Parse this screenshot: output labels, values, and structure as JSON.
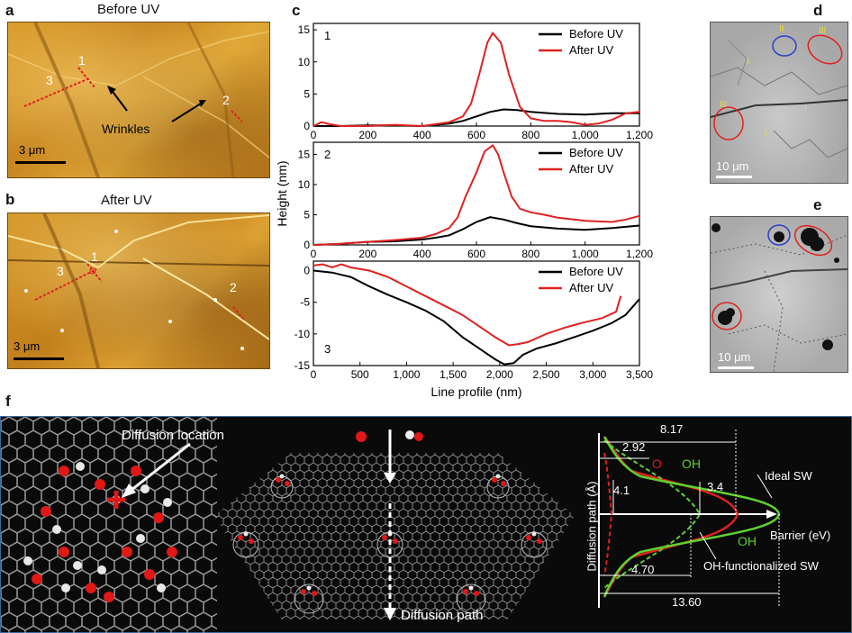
{
  "panels": {
    "a": {
      "label": "a",
      "title": "Before UV",
      "scale": "3 μm",
      "annotation": "Wrinkles",
      "markers": [
        "1",
        "2",
        "3"
      ]
    },
    "b": {
      "label": "b",
      "title": "After UV",
      "scale": "3 μm",
      "markers": [
        "1",
        "2",
        "3"
      ]
    },
    "c": {
      "label": "c"
    },
    "d": {
      "label": "d",
      "scale": "10 μm",
      "roman": [
        "II",
        "III",
        "I",
        "III",
        "I",
        "I",
        "I"
      ]
    },
    "e": {
      "label": "e",
      "scale": "10 μm"
    },
    "f": {
      "label": "f",
      "diffusion_location": "Diffusion location",
      "diffusion_path": "Diffusion path"
    }
  },
  "chart_data": [
    {
      "type": "line",
      "panel_number": "1",
      "xlim": [
        0,
        1200
      ],
      "ylim": [
        0,
        16
      ],
      "xticks": [
        "0",
        "200",
        "400",
        "600",
        "800",
        "1,000",
        "1,200"
      ],
      "yticks": [
        "0",
        "5",
        "10",
        "15"
      ],
      "series": [
        {
          "name": "Before UV",
          "color": "#000000",
          "x": [
            0,
            100,
            200,
            300,
            400,
            450,
            500,
            550,
            600,
            650,
            700,
            750,
            800,
            900,
            1000,
            1100,
            1200
          ],
          "y": [
            0,
            0,
            0.1,
            0.1,
            0,
            0.2,
            0.4,
            0.8,
            1.5,
            2.2,
            2.6,
            2.5,
            2.2,
            1.9,
            1.8,
            2.0,
            2.0
          ]
        },
        {
          "name": "After UV",
          "color": "#e02020",
          "x": [
            0,
            30,
            60,
            100,
            200,
            300,
            400,
            450,
            500,
            550,
            580,
            610,
            640,
            660,
            690,
            720,
            760,
            800,
            850,
            900,
            950,
            1000,
            1050,
            1100,
            1150,
            1200
          ],
          "y": [
            0,
            0.6,
            0.3,
            0,
            0,
            0.2,
            0,
            0.3,
            0.6,
            1.5,
            3.5,
            8.0,
            13.0,
            14.5,
            13.0,
            8.0,
            3.0,
            1.2,
            0.8,
            0.8,
            0.6,
            0.2,
            0.4,
            1.0,
            2.0,
            2.2
          ]
        }
      ]
    },
    {
      "type": "line",
      "panel_number": "2",
      "ylabel": "Height (nm)",
      "xlim": [
        0,
        1200
      ],
      "ylim": [
        0,
        17
      ],
      "xticks": [
        "0",
        "200",
        "400",
        "600",
        "800",
        "1,000",
        "1,200"
      ],
      "yticks": [
        "0",
        "5",
        "10",
        "15"
      ],
      "series": [
        {
          "name": "Before UV",
          "color": "#000000",
          "x": [
            0,
            100,
            200,
            300,
            400,
            450,
            500,
            550,
            600,
            650,
            700,
            750,
            800,
            900,
            1000,
            1100,
            1200
          ],
          "y": [
            0,
            0.2,
            0.5,
            0.6,
            0.9,
            1.2,
            1.6,
            2.6,
            3.8,
            4.6,
            4.2,
            3.6,
            3.1,
            2.7,
            2.5,
            2.8,
            3.2
          ]
        },
        {
          "name": "After UV",
          "color": "#e02020",
          "x": [
            0,
            100,
            200,
            300,
            400,
            450,
            500,
            530,
            560,
            600,
            630,
            660,
            680,
            700,
            730,
            760,
            800,
            850,
            900,
            1000,
            1100,
            1150,
            1200
          ],
          "y": [
            0,
            0.2,
            0.5,
            0.8,
            1.2,
            1.8,
            2.8,
            4.5,
            8.0,
            12.0,
            15.5,
            16.5,
            15.0,
            12.0,
            8.0,
            6.0,
            5.4,
            5.0,
            4.5,
            4.0,
            3.8,
            4.2,
            4.8
          ]
        }
      ]
    },
    {
      "type": "line",
      "panel_number": "3",
      "xlabel": "Line profile (nm)",
      "xlim": [
        0,
        3500
      ],
      "ylim": [
        -15,
        1.5
      ],
      "xticks": [
        "0",
        "500",
        "1,000",
        "1,500",
        "2,000",
        "2,500",
        "3,000",
        "3,500"
      ],
      "yticks": [
        "0",
        "-5",
        "-10",
        "-15"
      ],
      "series": [
        {
          "name": "Before UV",
          "color": "#000000",
          "x": [
            0,
            200,
            400,
            600,
            800,
            1000,
            1200,
            1400,
            1600,
            1800,
            1950,
            2050,
            2150,
            2250,
            2400,
            2600,
            2800,
            3000,
            3200,
            3350,
            3500
          ],
          "y": [
            0,
            -0.3,
            -1.0,
            -2.5,
            -3.8,
            -5.0,
            -6.3,
            -8.0,
            -10.5,
            -12.5,
            -14.0,
            -14.8,
            -14.6,
            -13.3,
            -12.3,
            -11.5,
            -10.5,
            -9.5,
            -8.3,
            -7.0,
            -4.5
          ]
        },
        {
          "name": "After UV",
          "color": "#e02020",
          "x": [
            0,
            100,
            200,
            300,
            400,
            600,
            800,
            1000,
            1200,
            1400,
            1600,
            1800,
            1950,
            2100,
            2200,
            2300,
            2500,
            2700,
            2900,
            3100,
            3250,
            3300
          ],
          "y": [
            0.8,
            1.0,
            0.5,
            1.0,
            0.5,
            0,
            -1.0,
            -2.5,
            -4.0,
            -5.5,
            -7.0,
            -9.0,
            -10.5,
            -11.8,
            -11.6,
            -11.3,
            -10.0,
            -9.0,
            -8.2,
            -7.5,
            -6.5,
            -4.0
          ]
        }
      ]
    }
  ],
  "energy": {
    "labels": {
      "o": "O",
      "oh_top": "OH",
      "oh_bottom": "OH",
      "ideal_sw": "Ideal SW",
      "oh_sw": "OH-functionalized SW",
      "barrier": "Barrier (eV)",
      "path": "Diffusion path (Å)"
    },
    "values": {
      "v817": "8.17",
      "v292": "2.92",
      "v41": "4.1",
      "v34": "3.4",
      "v470": "4.70",
      "v1360": "13.60"
    },
    "colors": {
      "o": "#e02020",
      "oh": "#5fd12f"
    }
  }
}
